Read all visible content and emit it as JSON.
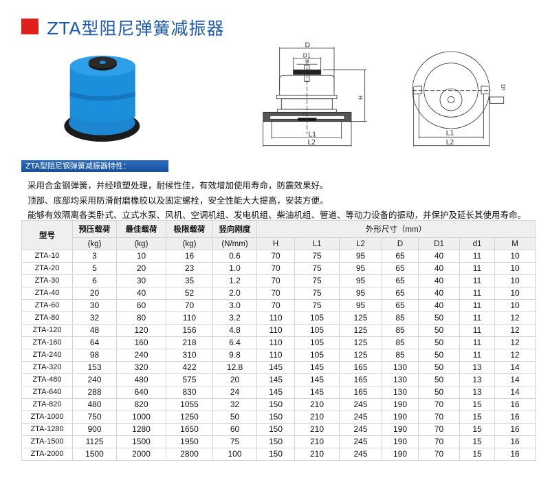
{
  "title": "ZTA型阻尼弹簧减振器",
  "section_label": "ZTA型阻尼钢弹簧减振器特性：",
  "features": [
    "采用合金钢弹簧，并经喷塑处理，耐候性佳，有效增加使用寿命，防震效果好。",
    "顶部、底部均采用防滑耐磨橡胶以及固定螺栓，安全性能大大提高，安装方便。",
    "能够有效隔离各类卧式、立式水泵、风机、空调机组、发电机组、柴油机组、管道、等动力设备的振动，并保护及延长其使用寿命。"
  ],
  "drawing_labels": {
    "D": "D",
    "D1": "D1",
    "M": "M",
    "H": "H",
    "L1": "L1",
    "L2": "L2",
    "d1": "d1"
  },
  "colors": {
    "title": "#1e5aa8",
    "accent_red": "#e0201c",
    "product_blue": "#1c8fdc",
    "bar_blue": "#1f5fae"
  },
  "table": {
    "headers": {
      "model": "型号",
      "preload": "预压载荷",
      "preload_unit": "(kg)",
      "best": "最佳载荷",
      "best_unit": "(kg)",
      "limit": "极限载荷",
      "limit_unit": "(kg)",
      "stiff": "竖向刚度",
      "stiff_unit": "(N/mm)",
      "dims": "外形尺寸（mm）",
      "dim_cols": [
        "H",
        "L1",
        "L2",
        "D",
        "D1",
        "d1",
        "M"
      ]
    },
    "rows": [
      [
        "ZTA-10",
        "3",
        "10",
        "16",
        "0.6",
        "70",
        "75",
        "95",
        "65",
        "40",
        "11",
        "10"
      ],
      [
        "ZTA-20",
        "5",
        "20",
        "23",
        "1.0",
        "70",
        "75",
        "95",
        "65",
        "40",
        "11",
        "10"
      ],
      [
        "ZTA-30",
        "6",
        "30",
        "35",
        "1.2",
        "70",
        "75",
        "95",
        "65",
        "40",
        "11",
        "10"
      ],
      [
        "ZTA-40",
        "20",
        "40",
        "52",
        "2.0",
        "70",
        "75",
        "95",
        "65",
        "40",
        "11",
        "10"
      ],
      [
        "ZTA-60",
        "30",
        "60",
        "70",
        "3.0",
        "70",
        "75",
        "95",
        "65",
        "40",
        "11",
        "10"
      ],
      [
        "ZTA-80",
        "32",
        "80",
        "110",
        "3.2",
        "110",
        "105",
        "125",
        "85",
        "50",
        "11",
        "12"
      ],
      [
        "ZTA-120",
        "48",
        "120",
        "156",
        "4.8",
        "110",
        "105",
        "125",
        "85",
        "50",
        "11",
        "12"
      ],
      [
        "ZTA-160",
        "64",
        "160",
        "218",
        "6.4",
        "110",
        "105",
        "125",
        "85",
        "50",
        "11",
        "12"
      ],
      [
        "ZTA-240",
        "98",
        "240",
        "310",
        "9.8",
        "110",
        "105",
        "125",
        "85",
        "50",
        "11",
        "12"
      ],
      [
        "ZTA-320",
        "153",
        "320",
        "422",
        "12.8",
        "145",
        "145",
        "165",
        "130",
        "50",
        "13",
        "14"
      ],
      [
        "ZTA-480",
        "240",
        "480",
        "575",
        "20",
        "145",
        "145",
        "165",
        "130",
        "50",
        "13",
        "14"
      ],
      [
        "ZTA-640",
        "288",
        "640",
        "830",
        "24",
        "145",
        "145",
        "165",
        "130",
        "50",
        "13",
        "14"
      ],
      [
        "ZTA-820",
        "480",
        "820",
        "1055",
        "32",
        "150",
        "210",
        "245",
        "190",
        "70",
        "15",
        "16"
      ],
      [
        "ZTA-1000",
        "750",
        "1000",
        "1250",
        "50",
        "150",
        "210",
        "245",
        "190",
        "70",
        "15",
        "16"
      ],
      [
        "ZTA-1280",
        "900",
        "1280",
        "1650",
        "60",
        "150",
        "210",
        "245",
        "190",
        "70",
        "15",
        "16"
      ],
      [
        "ZTA-1500",
        "1125",
        "1500",
        "1950",
        "75",
        "150",
        "210",
        "245",
        "190",
        "70",
        "15",
        "16"
      ],
      [
        "ZTA-2000",
        "1500",
        "2000",
        "2800",
        "100",
        "150",
        "210",
        "245",
        "190",
        "70",
        "15",
        "16"
      ]
    ]
  }
}
